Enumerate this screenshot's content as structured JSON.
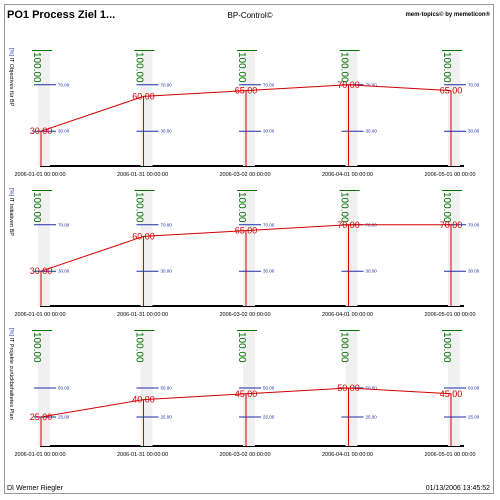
{
  "header": {
    "title": "PO1 Process Ziel 1...",
    "center": "BP-Control©",
    "right": "mem-topics© by memeticon®"
  },
  "footer": {
    "author": "DI Werner Riegler",
    "timestamp": "01/13/2006 13:45:52"
  },
  "colors": {
    "series_line": "#d40000",
    "target_value": "#007000",
    "threshold": "#1a2ea8",
    "bar_fill": "#f0f0f0",
    "axis": "#000000"
  },
  "chart_data": [
    {
      "type": "line",
      "ylabel": "IT Objectives für BP",
      "yunit": "[%]",
      "ylim": [
        0,
        100
      ],
      "x": [
        "2006-01-01 00:00:00",
        "2006-01-31 00:00:00",
        "2006-03-02 00:00:00",
        "2006-04-01 00:00:00",
        "2006-05-01 00:00:00"
      ],
      "values": [
        30,
        60,
        65,
        70,
        65
      ],
      "value_labels": [
        "30.00",
        "60.00",
        "65.00",
        "70.00",
        "65.00"
      ],
      "target_labels": [
        "100.00",
        "100.00",
        "100.00",
        "100.00",
        "100.00"
      ],
      "upper_threshold": {
        "value": 70,
        "label": "70.00"
      },
      "lower_threshold": {
        "value": 30,
        "label": "30.00"
      }
    },
    {
      "type": "line",
      "ylabel": "IT Initiativen BP",
      "yunit": "[%]",
      "ylim": [
        0,
        100
      ],
      "x": [
        "2006-01-01 00:00:00",
        "2006-01-31 00:00:00",
        "2006-03-02 00:00:00",
        "2006-04-01 00:00:00",
        "2006-05-01 00:00:00"
      ],
      "values": [
        30,
        60,
        65,
        70,
        70
      ],
      "value_labels": [
        "30.00",
        "60.00",
        "65.00",
        "70.00",
        "70.00"
      ],
      "target_labels": [
        "100.00",
        "100.00",
        "100.00",
        "100.00",
        "100.00"
      ],
      "upper_threshold": {
        "value": 70,
        "label": "70.00"
      },
      "lower_threshold": {
        "value": 30,
        "label": "30.00"
      }
    },
    {
      "type": "line",
      "ylabel": "IT Projekte zurückbehaltetes Plan",
      "yunit": "[%]",
      "ylim": [
        0,
        100
      ],
      "x": [
        "2006-01-01 00:00:00",
        "2006-01-31 00:00:00",
        "2006-03-02 00:00:00",
        "2006-04-01 00:00:00",
        "2006-05-01 00:00:00"
      ],
      "values": [
        25,
        40,
        45,
        50,
        45
      ],
      "value_labels": [
        "25.00",
        "40.00",
        "45.00",
        "50.00",
        "45.00"
      ],
      "target_labels": [
        "100.00",
        "100.00",
        "100.00",
        "100.00",
        "100.00"
      ],
      "upper_threshold": {
        "value": 50,
        "label": "50.00"
      },
      "lower_threshold": {
        "value": 25,
        "label": "25.00"
      }
    }
  ]
}
